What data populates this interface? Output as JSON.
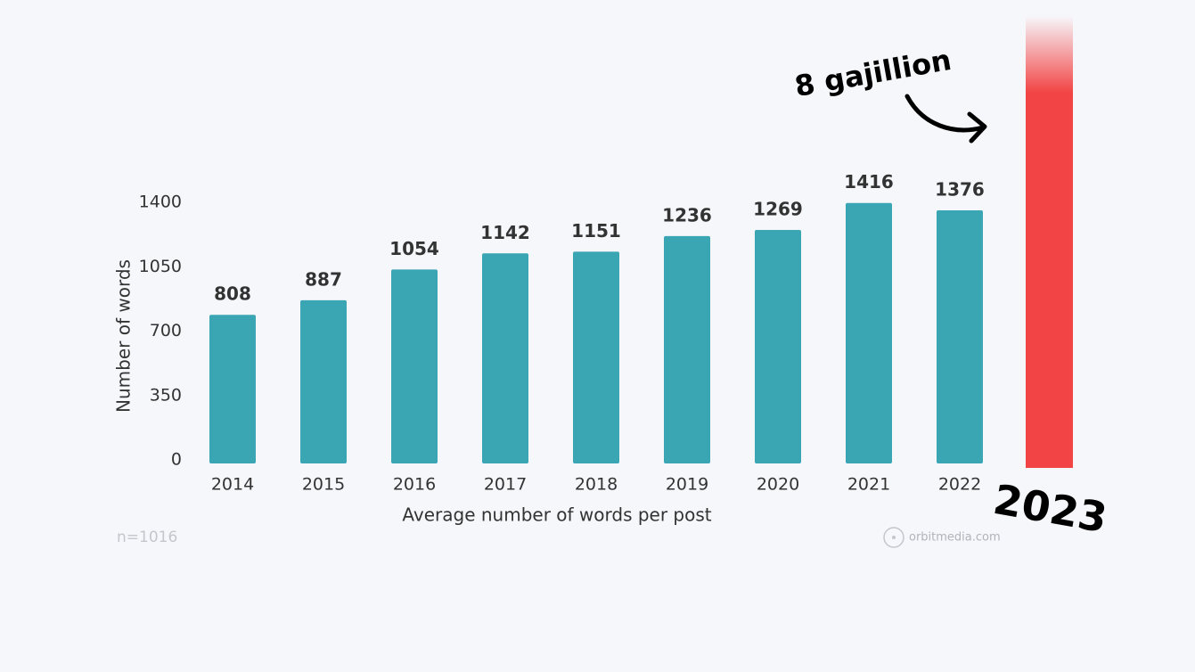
{
  "chart_data": {
    "type": "bar",
    "categories": [
      "2014",
      "2015",
      "2016",
      "2017",
      "2018",
      "2019",
      "2020",
      "2021",
      "2022"
    ],
    "values": [
      808,
      887,
      1054,
      1142,
      1151,
      1236,
      1269,
      1416,
      1376
    ],
    "color": "#3aa5b3",
    "ylim": [
      0,
      1400
    ],
    "yticks": [
      0,
      350,
      700,
      1050,
      1400
    ],
    "grid": false,
    "x_label": "Average number of words per post",
    "y_label": "Number of words",
    "annotations": {
      "sample": "n=1016",
      "source": "orbitmedia.com",
      "joke": "8 gajillion",
      "joke_year": "2023"
    }
  }
}
